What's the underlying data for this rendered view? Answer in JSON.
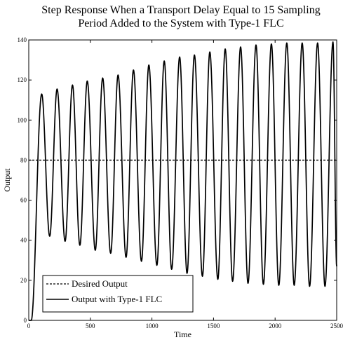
{
  "chart_data": {
    "type": "line",
    "title_lines": [
      "Step Response When a Transport Delay Equal to 15 Sampling",
      "Period Added to the System with Type-1 FLC"
    ],
    "xlabel": "Time",
    "ylabel": "Output",
    "xlim": [
      0,
      2500
    ],
    "ylim": [
      0,
      140
    ],
    "xticks": [
      0,
      500,
      1000,
      1500,
      2000,
      2500
    ],
    "yticks": [
      0,
      20,
      40,
      60,
      80,
      100,
      120,
      140
    ],
    "grid": false,
    "legend_position": "bottom-left",
    "series": [
      {
        "name": "Desired Output",
        "style": "dashed",
        "color": "#000000",
        "x": [
          0,
          2500
        ],
        "y": [
          80,
          80
        ]
      },
      {
        "name": "Output with Type-1 FLC",
        "style": "solid",
        "color": "#000000",
        "peaks": [
          {
            "x": 105,
            "y": 113
          },
          {
            "x": 230,
            "y": 115.5
          },
          {
            "x": 355,
            "y": 117.5
          },
          {
            "x": 475,
            "y": 119.5
          },
          {
            "x": 600,
            "y": 121
          },
          {
            "x": 725,
            "y": 122.5
          },
          {
            "x": 850,
            "y": 125
          },
          {
            "x": 975,
            "y": 127.5
          },
          {
            "x": 1100,
            "y": 129.5
          },
          {
            "x": 1225,
            "y": 131.5
          },
          {
            "x": 1345,
            "y": 132.5
          },
          {
            "x": 1470,
            "y": 134
          },
          {
            "x": 1595,
            "y": 135.5
          },
          {
            "x": 1720,
            "y": 136.5
          },
          {
            "x": 1845,
            "y": 137.5
          },
          {
            "x": 1970,
            "y": 138
          },
          {
            "x": 2095,
            "y": 138.5
          },
          {
            "x": 2220,
            "y": 138.5
          },
          {
            "x": 2345,
            "y": 138.5
          },
          {
            "x": 2470,
            "y": 139
          }
        ],
        "troughs": [
          {
            "x": 170,
            "y": 42
          },
          {
            "x": 295,
            "y": 39.5
          },
          {
            "x": 415,
            "y": 37.5
          },
          {
            "x": 540,
            "y": 35
          },
          {
            "x": 665,
            "y": 33.5
          },
          {
            "x": 790,
            "y": 31.5
          },
          {
            "x": 915,
            "y": 29.5
          },
          {
            "x": 1040,
            "y": 27.5
          },
          {
            "x": 1160,
            "y": 25.5
          },
          {
            "x": 1285,
            "y": 23.5
          },
          {
            "x": 1410,
            "y": 22
          },
          {
            "x": 1535,
            "y": 20.5
          },
          {
            "x": 1655,
            "y": 19.5
          },
          {
            "x": 1780,
            "y": 18.5
          },
          {
            "x": 1905,
            "y": 18
          },
          {
            "x": 2030,
            "y": 17.5
          },
          {
            "x": 2155,
            "y": 17.5
          },
          {
            "x": 2280,
            "y": 17
          },
          {
            "x": 2405,
            "y": 17
          }
        ],
        "start": {
          "x": 0,
          "y": 0
        },
        "initial_hold_until": 20,
        "end": {
          "x": 2500,
          "y": 27
        }
      }
    ]
  }
}
